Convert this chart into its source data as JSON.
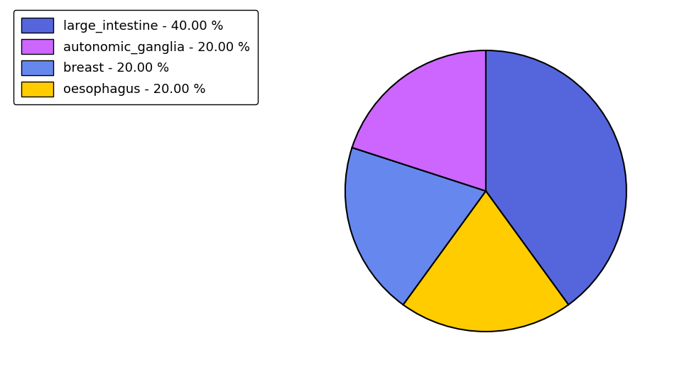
{
  "labels": [
    "large_intestine",
    "autonomic_ganglia",
    "breast",
    "oesophagus"
  ],
  "values": [
    40.0,
    20.0,
    20.0,
    20.0
  ],
  "slice_order": [
    "large_intestine",
    "oesophagus",
    "breast",
    "autonomic_ganglia"
  ],
  "slice_values": [
    40.0,
    20.0,
    20.0,
    20.0
  ],
  "colors_ordered": [
    "#5566dd",
    "#ffcc00",
    "#6688ee",
    "#cc66ff"
  ],
  "legend_colors": [
    "#5566dd",
    "#cc66ff",
    "#6688ee",
    "#ffcc00"
  ],
  "legend_labels": [
    "large_intestine - 40.00 %",
    "autonomic_ganglia - 20.00 %",
    "breast - 20.00 %",
    "oesophagus - 20.00 %"
  ],
  "startangle": 90,
  "figsize": [
    9.77,
    5.38
  ],
  "dpi": 100,
  "background_color": "#ffffff",
  "edge_color": "#000000",
  "edge_linewidth": 1.5,
  "legend_fontsize": 13
}
